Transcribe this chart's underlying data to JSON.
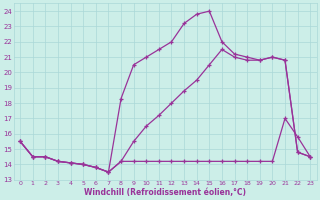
{
  "xlabel": "Windchill (Refroidissement éolien,°C)",
  "bg_color": "#cceee8",
  "line_color": "#993399",
  "marker": "+",
  "xlim": [
    -0.5,
    23.5
  ],
  "ylim": [
    13,
    24.5
  ],
  "xticks": [
    0,
    1,
    2,
    3,
    4,
    5,
    6,
    7,
    8,
    9,
    10,
    11,
    12,
    13,
    14,
    15,
    16,
    17,
    18,
    19,
    20,
    21,
    22,
    23
  ],
  "yticks": [
    13,
    14,
    15,
    16,
    17,
    18,
    19,
    20,
    21,
    22,
    23,
    24
  ],
  "grid_color": "#aad8d8",
  "line1_x": [
    0,
    1,
    2,
    3,
    4,
    5,
    6,
    7,
    8,
    9,
    10,
    11,
    12,
    13,
    14,
    15,
    16,
    17,
    18,
    19,
    20,
    21,
    22,
    23
  ],
  "line1_y": [
    15.5,
    14.5,
    14.5,
    14.2,
    14.1,
    14.0,
    13.8,
    13.5,
    18.3,
    20.5,
    21.0,
    21.5,
    22.0,
    23.2,
    23.8,
    24.0,
    22.0,
    21.2,
    21.0,
    20.8,
    21.0,
    20.8,
    14.8,
    14.5
  ],
  "line2_x": [
    0,
    1,
    2,
    3,
    4,
    5,
    6,
    7,
    8,
    9,
    10,
    11,
    12,
    13,
    14,
    15,
    16,
    17,
    18,
    19,
    20,
    21,
    22,
    23
  ],
  "line2_y": [
    15.5,
    14.5,
    14.5,
    14.2,
    14.1,
    14.0,
    13.8,
    13.5,
    14.2,
    15.5,
    16.5,
    17.2,
    18.0,
    18.8,
    19.5,
    20.5,
    21.5,
    21.0,
    20.8,
    20.8,
    21.0,
    20.8,
    14.8,
    14.5
  ],
  "line3_x": [
    0,
    1,
    2,
    3,
    4,
    5,
    6,
    7,
    8,
    9,
    10,
    11,
    12,
    13,
    14,
    15,
    16,
    17,
    18,
    19,
    20,
    21,
    22,
    23
  ],
  "line3_y": [
    15.5,
    14.5,
    14.5,
    14.2,
    14.1,
    14.0,
    13.8,
    13.5,
    14.2,
    14.2,
    14.2,
    14.2,
    14.2,
    14.2,
    14.2,
    14.2,
    14.2,
    14.2,
    14.2,
    14.2,
    14.2,
    17.0,
    15.8,
    14.5
  ]
}
